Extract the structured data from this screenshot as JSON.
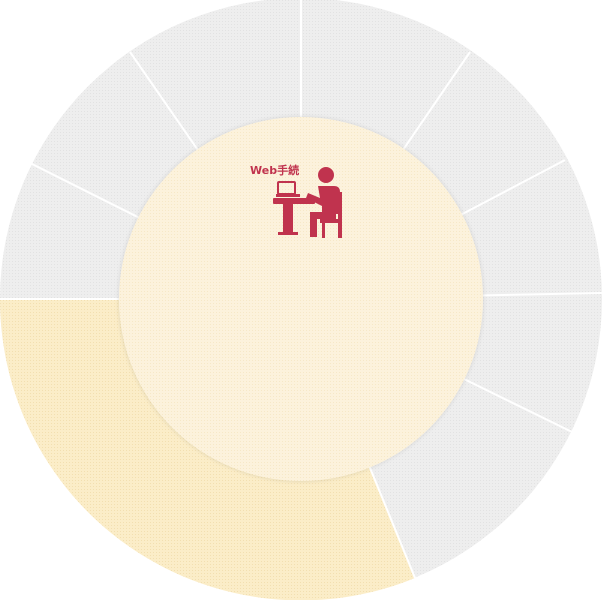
{
  "wheel": {
    "center_label": "Web手続",
    "center_icon": "person-at-laptop-icon",
    "active_segment": "lower-left",
    "colors": {
      "inactive_segment": "#ececec",
      "segment_divider": "#ffffff",
      "active_segment": "#faecc6",
      "center_fill": "#fcf1d9",
      "accent": "#c0334e"
    }
  }
}
